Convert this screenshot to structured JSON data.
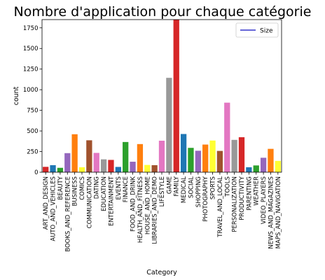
{
  "chart_data": {
    "type": "bar",
    "title": "Nombre d'application pour chaque catégorie",
    "xlabel": "Category",
    "ylabel": "count",
    "ylim": [
      0,
      1850
    ],
    "yticks": [
      0,
      250,
      500,
      750,
      1000,
      1250,
      1500,
      1750
    ],
    "grid": false,
    "legend": {
      "placement": "top-right",
      "entries": [
        {
          "label": "Size",
          "color": "#3333cc"
        }
      ]
    },
    "categories": [
      "ART_AND_DESIGN",
      "AUTO_AND_VEHICLES",
      "BEAUTY",
      "BOOKS_AND_REFERENCE",
      "BUSINESS",
      "COMICS",
      "COMMUNICATION",
      "DATING",
      "EDUCATION",
      "ENTERTAINMENT",
      "EVENTS",
      "FINANCE",
      "FOOD_AND_DRINK",
      "HEALTH_AND_FITNESS",
      "HOUSE_AND_HOME",
      "LIBRARIES_AND_DEMO",
      "LIFESTYLE",
      "GAME",
      "FAMILY",
      "MEDICAL",
      "SOCIAL",
      "SHOPPING",
      "PHOTOGRAPHY",
      "SPORTS",
      "TRAVEL_AND_LOCAL",
      "TOOLS",
      "PERSONALIZATION",
      "PRODUCTIVITY",
      "PARENTING",
      "WEATHER",
      "VIDEO_PLAYERS",
      "NEWS_AND_MAGAZINES",
      "MAPS_AND_NAVIGATION"
    ],
    "values": [
      65,
      85,
      53,
      231,
      460,
      60,
      387,
      234,
      156,
      149,
      64,
      366,
      127,
      341,
      88,
      85,
      382,
      1144,
      1972,
      463,
      295,
      260,
      335,
      384,
      258,
      843,
      392,
      424,
      60,
      82,
      175,
      283,
      137
    ],
    "colors": [
      "#d62728",
      "#1f77b4",
      "#2ca02c",
      "#9467bd",
      "#ff7f0e",
      "#ffff33",
      "#a0522d",
      "#e377c2",
      "#999999",
      "#d62728",
      "#1f77b4",
      "#2ca02c",
      "#9467bd",
      "#ff7f0e",
      "#ffff33",
      "#a0522d",
      "#e377c2",
      "#999999",
      "#d62728",
      "#1f77b4",
      "#2ca02c",
      "#9467bd",
      "#ff7f0e",
      "#ffff33",
      "#a0522d",
      "#e377c2",
      "#999999",
      "#d62728",
      "#1f77b4",
      "#2ca02c",
      "#9467bd",
      "#ff7f0e",
      "#ffff33"
    ]
  }
}
